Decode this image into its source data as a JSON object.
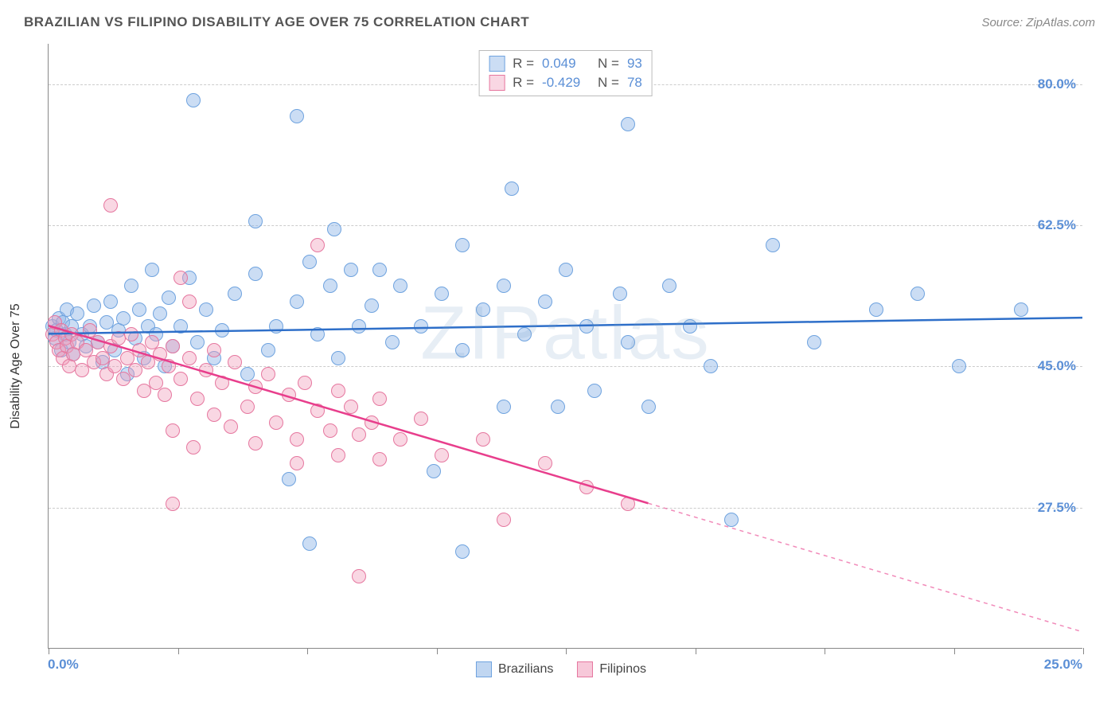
{
  "title": "BRAZILIAN VS FILIPINO DISABILITY AGE OVER 75 CORRELATION CHART",
  "source": "Source: ZipAtlas.com",
  "y_axis_label": "Disability Age Over 75",
  "watermark": "ZIPatlas",
  "chart": {
    "type": "scatter",
    "xlim": [
      0,
      25
    ],
    "ylim": [
      10,
      85
    ],
    "x_tick_positions": [
      0,
      3.125,
      6.25,
      9.375,
      12.5,
      15.625,
      18.75,
      21.875,
      25
    ],
    "x_tick_labels": {
      "0": "0.0%",
      "25": "25.0%"
    },
    "y_grid": [
      27.5,
      45.0,
      62.5,
      80.0
    ],
    "y_tick_labels": [
      "27.5%",
      "45.0%",
      "62.5%",
      "80.0%"
    ],
    "background_color": "#ffffff",
    "grid_color": "#cccccc",
    "axis_color": "#888888",
    "tick_label_color": "#5b8fd6",
    "marker_radius": 9,
    "marker_border_width": 1.5,
    "series": [
      {
        "name": "Brazilians",
        "fill_color": "rgba(140,180,230,0.45)",
        "border_color": "#6fa3df",
        "line_color": "#2e6fc9",
        "R": "0.049",
        "N": "93",
        "trend": {
          "x1": 0,
          "y1": 49.0,
          "x2": 25,
          "y2": 51.0,
          "solid_to_x": 25
        },
        "points": [
          [
            0.1,
            50
          ],
          [
            0.15,
            48.5
          ],
          [
            0.2,
            49.5
          ],
          [
            0.25,
            51
          ],
          [
            0.3,
            47
          ],
          [
            0.35,
            50.5
          ],
          [
            0.4,
            49
          ],
          [
            0.45,
            52
          ],
          [
            0.5,
            48
          ],
          [
            0.55,
            50
          ],
          [
            0.6,
            46.5
          ],
          [
            0.7,
            51.5
          ],
          [
            0.8,
            49
          ],
          [
            0.9,
            47.5
          ],
          [
            1.0,
            50
          ],
          [
            1.1,
            52.5
          ],
          [
            1.2,
            48
          ],
          [
            1.3,
            45.5
          ],
          [
            1.4,
            50.5
          ],
          [
            1.5,
            53
          ],
          [
            1.6,
            47
          ],
          [
            1.7,
            49.5
          ],
          [
            1.8,
            51
          ],
          [
            1.9,
            44
          ],
          [
            2.0,
            55
          ],
          [
            2.1,
            48.5
          ],
          [
            2.2,
            52
          ],
          [
            2.3,
            46
          ],
          [
            2.4,
            50
          ],
          [
            2.5,
            57
          ],
          [
            2.6,
            49
          ],
          [
            2.7,
            51.5
          ],
          [
            2.8,
            45
          ],
          [
            2.9,
            53.5
          ],
          [
            3.0,
            47.5
          ],
          [
            3.2,
            50
          ],
          [
            3.4,
            56
          ],
          [
            3.6,
            48
          ],
          [
            3.8,
            52
          ],
          [
            4.0,
            46
          ],
          [
            4.2,
            49.5
          ],
          [
            3.5,
            78
          ],
          [
            4.5,
            54
          ],
          [
            4.8,
            44
          ],
          [
            5.0,
            56.5
          ],
          [
            5.0,
            63
          ],
          [
            5.3,
            47
          ],
          [
            5.5,
            50
          ],
          [
            5.8,
            31
          ],
          [
            6.0,
            53
          ],
          [
            6.0,
            76
          ],
          [
            6.3,
            58
          ],
          [
            6.3,
            23
          ],
          [
            6.5,
            49
          ],
          [
            6.8,
            55
          ],
          [
            6.9,
            62
          ],
          [
            7.0,
            46
          ],
          [
            7.3,
            57
          ],
          [
            7.5,
            50
          ],
          [
            7.8,
            52.5
          ],
          [
            8.0,
            57
          ],
          [
            8.3,
            48
          ],
          [
            8.5,
            55
          ],
          [
            9.0,
            50
          ],
          [
            9.3,
            32
          ],
          [
            9.5,
            54
          ],
          [
            10.0,
            47
          ],
          [
            10.0,
            22
          ],
          [
            10.0,
            60
          ],
          [
            10.5,
            52
          ],
          [
            11.0,
            40
          ],
          [
            11.0,
            55
          ],
          [
            11.2,
            67
          ],
          [
            11.5,
            49
          ],
          [
            12.0,
            53
          ],
          [
            12.3,
            40
          ],
          [
            12.5,
            57
          ],
          [
            13.0,
            50
          ],
          [
            13.2,
            42
          ],
          [
            13.8,
            54
          ],
          [
            14.0,
            48
          ],
          [
            14.0,
            75
          ],
          [
            14.5,
            40
          ],
          [
            15.0,
            55
          ],
          [
            15.5,
            50
          ],
          [
            16.0,
            45
          ],
          [
            16.5,
            26
          ],
          [
            17.5,
            60
          ],
          [
            18.5,
            48
          ],
          [
            20.0,
            52
          ],
          [
            21.0,
            54
          ],
          [
            22.0,
            45
          ],
          [
            23.5,
            52
          ]
        ]
      },
      {
        "name": "Filipinos",
        "fill_color": "rgba(240,155,185,0.40)",
        "border_color": "#e6779f",
        "line_color": "#e83e8c",
        "R": "-0.429",
        "N": "78",
        "trend": {
          "x1": 0,
          "y1": 50.0,
          "x2": 25,
          "y2": 12.0,
          "solid_to_x": 14.5
        },
        "points": [
          [
            0.1,
            49
          ],
          [
            0.15,
            50.5
          ],
          [
            0.2,
            48
          ],
          [
            0.25,
            47
          ],
          [
            0.3,
            49.5
          ],
          [
            0.35,
            46
          ],
          [
            0.4,
            48.5
          ],
          [
            0.45,
            47.5
          ],
          [
            0.5,
            45
          ],
          [
            0.55,
            49
          ],
          [
            0.6,
            46.5
          ],
          [
            0.7,
            48
          ],
          [
            0.8,
            44.5
          ],
          [
            0.9,
            47
          ],
          [
            1.0,
            49.5
          ],
          [
            1.1,
            45.5
          ],
          [
            1.2,
            48
          ],
          [
            1.3,
            46
          ],
          [
            1.4,
            44
          ],
          [
            1.5,
            47.5
          ],
          [
            1.5,
            65
          ],
          [
            1.6,
            45
          ],
          [
            1.7,
            48.5
          ],
          [
            1.8,
            43.5
          ],
          [
            1.9,
            46
          ],
          [
            2.0,
            49
          ],
          [
            2.1,
            44.5
          ],
          [
            2.2,
            47
          ],
          [
            2.3,
            42
          ],
          [
            2.4,
            45.5
          ],
          [
            2.5,
            48
          ],
          [
            2.6,
            43
          ],
          [
            2.7,
            46.5
          ],
          [
            2.8,
            41.5
          ],
          [
            2.9,
            45
          ],
          [
            3.0,
            47.5
          ],
          [
            3.0,
            37
          ],
          [
            3.0,
            28
          ],
          [
            3.2,
            56
          ],
          [
            3.2,
            43.5
          ],
          [
            3.4,
            46
          ],
          [
            3.4,
            53
          ],
          [
            3.5,
            35
          ],
          [
            3.6,
            41
          ],
          [
            3.8,
            44.5
          ],
          [
            4.0,
            39
          ],
          [
            4.0,
            47
          ],
          [
            4.2,
            43
          ],
          [
            4.4,
            37.5
          ],
          [
            4.5,
            45.5
          ],
          [
            4.8,
            40
          ],
          [
            5.0,
            42.5
          ],
          [
            5.0,
            35.5
          ],
          [
            5.3,
            44
          ],
          [
            5.5,
            38
          ],
          [
            5.8,
            41.5
          ],
          [
            6.0,
            36
          ],
          [
            6.0,
            33
          ],
          [
            6.2,
            43
          ],
          [
            6.5,
            39.5
          ],
          [
            6.5,
            60
          ],
          [
            6.8,
            37
          ],
          [
            7.0,
            34
          ],
          [
            7.0,
            42
          ],
          [
            7.3,
            40
          ],
          [
            7.5,
            36.5
          ],
          [
            7.5,
            19
          ],
          [
            7.8,
            38
          ],
          [
            8.0,
            33.5
          ],
          [
            8.0,
            41
          ],
          [
            8.5,
            36
          ],
          [
            9.0,
            38.5
          ],
          [
            9.5,
            34
          ],
          [
            10.5,
            36
          ],
          [
            11.0,
            26
          ],
          [
            12.0,
            33
          ],
          [
            13.0,
            30
          ],
          [
            14.0,
            28
          ]
        ]
      }
    ],
    "legend_bottom": [
      {
        "label": "Brazilians",
        "fill": "rgba(140,180,230,0.55)",
        "border": "#6fa3df"
      },
      {
        "label": "Filipinos",
        "fill": "rgba(240,155,185,0.55)",
        "border": "#e6779f"
      }
    ]
  }
}
